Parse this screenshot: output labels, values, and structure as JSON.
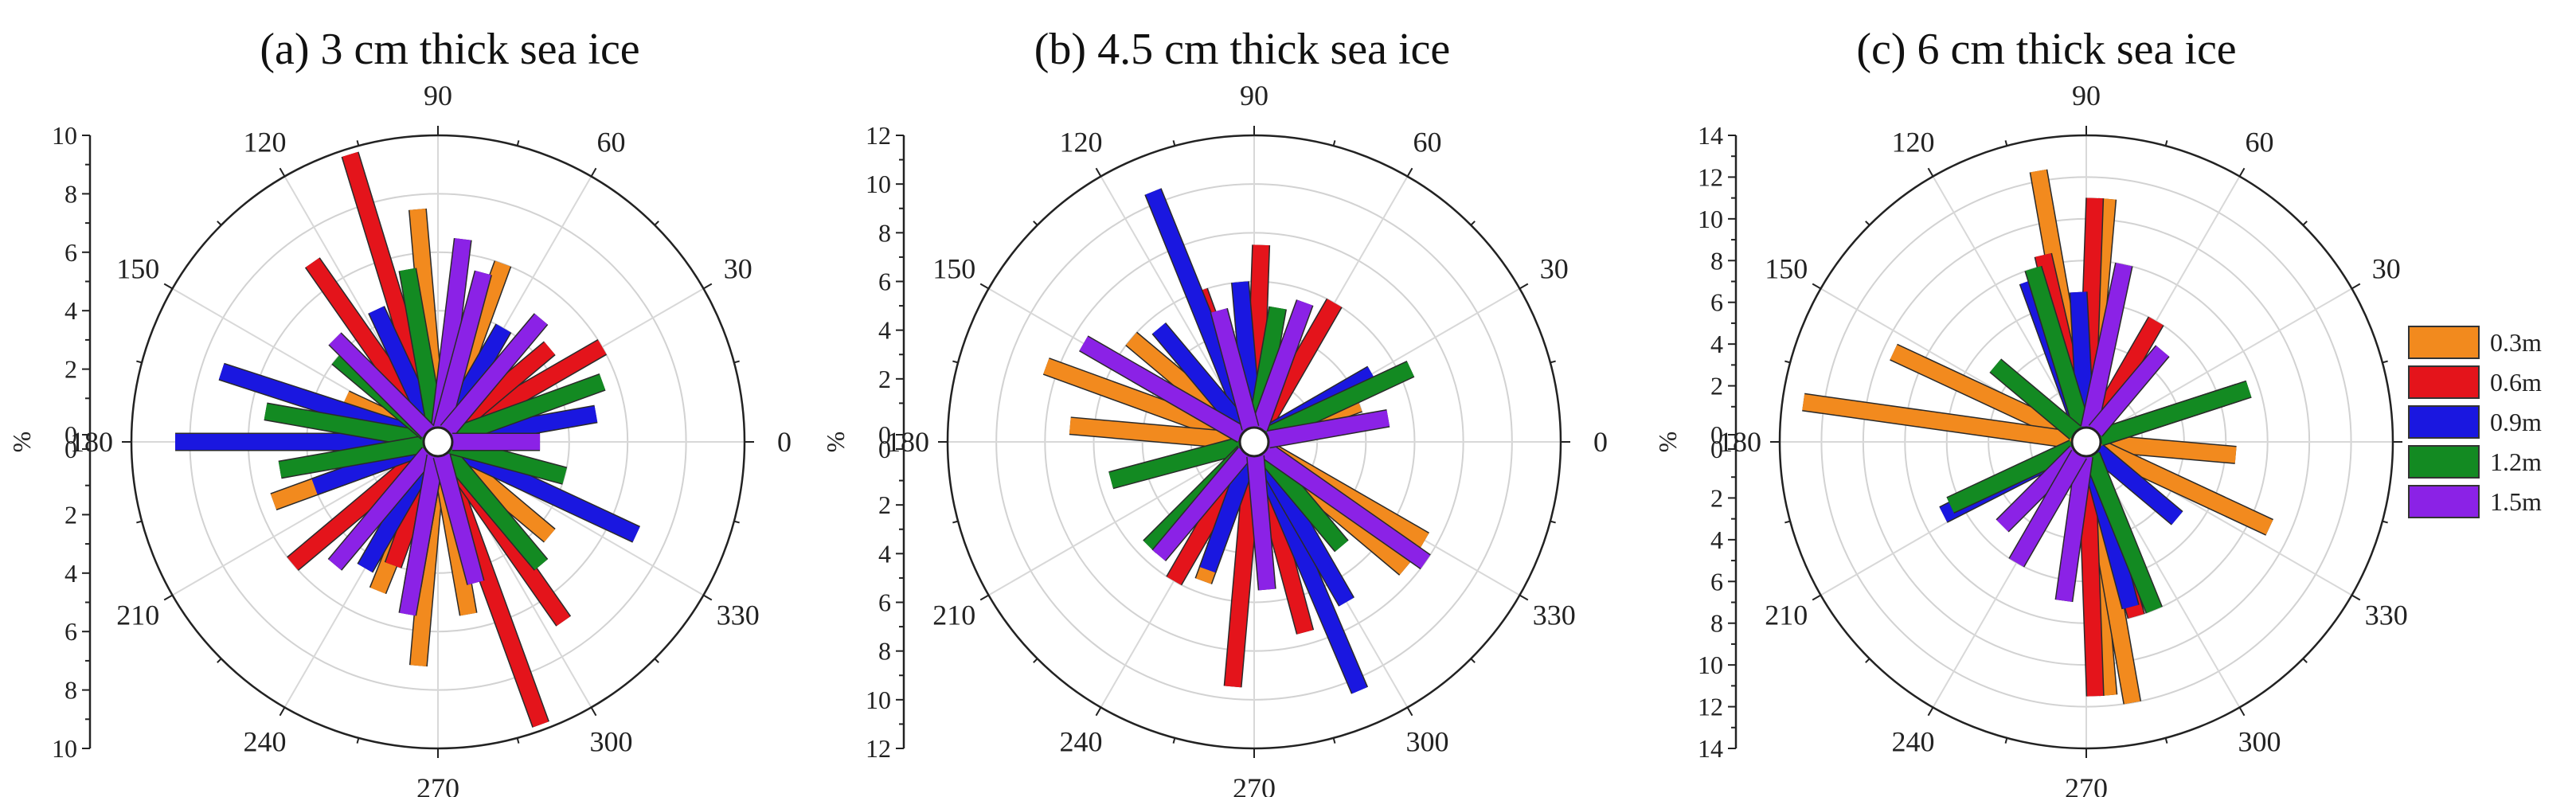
{
  "chart_data": [
    {
      "type": "polar-bar",
      "title": "(a) 3 cm thick sea ice",
      "ylabel": "%",
      "rlim": [
        0,
        10
      ],
      "radial_ticks": [
        0,
        2,
        4,
        6,
        8,
        10
      ],
      "angle_ticks": [
        0,
        30,
        60,
        90,
        120,
        150,
        180,
        210,
        240,
        270,
        300,
        330
      ],
      "angle_unit": "deg",
      "grid": true,
      "series": [
        {
          "name": "0.3m",
          "color": "#f28a1e",
          "angles": [
            95,
            200,
            248,
            265,
            280,
            320,
            70,
            155
          ],
          "values": [
            7.5,
            5.5,
            5.0,
            7.2,
            5.5,
            4.5,
            6.0,
            3.0
          ]
        },
        {
          "name": "0.6m",
          "color": "#e4141b",
          "angles": [
            107,
            125,
            290,
            305,
            30,
            220,
            40,
            250
          ],
          "values": [
            9.8,
            7.0,
            9.8,
            7.0,
            6.0,
            6.0,
            4.5,
            4.0
          ]
        },
        {
          "name": "0.9m",
          "color": "#1a17e0",
          "angles": [
            162,
            180,
            335,
            115,
            60,
            240,
            10,
            200
          ],
          "values": [
            7.3,
            8.5,
            7.0,
            4.5,
            4.0,
            4.5,
            5.0,
            4.0
          ]
        },
        {
          "name": "1.2m",
          "color": "#138a22",
          "angles": [
            170,
            190,
            20,
            100,
            310,
            260,
            140,
            345
          ],
          "values": [
            5.5,
            5.0,
            5.5,
            5.5,
            5.0,
            4.5,
            4.0,
            4.0
          ]
        },
        {
          "name": "1.5m",
          "color": "#8b22e6",
          "angles": [
            83,
            75,
            50,
            230,
            260,
            135,
            0,
            285
          ],
          "values": [
            6.5,
            5.5,
            5.0,
            5.0,
            5.5,
            4.5,
            3.0,
            4.5
          ]
        }
      ]
    },
    {
      "type": "polar-bar",
      "title": "(b) 4.5 cm thick sea ice",
      "ylabel": "%",
      "rlim": [
        0,
        12
      ],
      "radial_ticks": [
        0,
        2,
        4,
        6,
        8,
        10,
        12
      ],
      "angle_ticks": [
        0,
        30,
        60,
        90,
        120,
        150,
        180,
        210,
        240,
        270,
        300,
        330
      ],
      "angle_unit": "deg",
      "grid": true,
      "series": [
        {
          "name": "0.3m",
          "color": "#f28a1e",
          "angles": [
            160,
            175,
            320,
            330,
            140,
            250,
            20
          ],
          "values": [
            8.5,
            7.0,
            7.5,
            7.5,
            6.0,
            5.5,
            4.0
          ]
        },
        {
          "name": "0.6m",
          "color": "#e4141b",
          "angles": [
            88,
            265,
            285,
            110,
            240,
            60
          ],
          "values": [
            7.5,
            9.5,
            7.5,
            6.0,
            6.0,
            6.0
          ]
        },
        {
          "name": "0.9m",
          "color": "#1a17e0",
          "angles": [
            112,
            293,
            300,
            95,
            130,
            250,
            30
          ],
          "values": [
            10.5,
            10.5,
            7.0,
            6.0,
            5.5,
            5.0,
            5.0
          ]
        },
        {
          "name": "1.2m",
          "color": "#138a22",
          "angles": [
            25,
            195,
            225,
            80,
            150,
            310
          ],
          "values": [
            6.5,
            5.5,
            5.5,
            5.0,
            5.0,
            5.0
          ]
        },
        {
          "name": "1.5m",
          "color": "#8b22e6",
          "angles": [
            150,
            325,
            70,
            105,
            230,
            10,
            275
          ],
          "values": [
            7.5,
            8.0,
            5.5,
            5.0,
            5.5,
            5.0,
            5.5
          ]
        }
      ]
    },
    {
      "type": "polar-bar",
      "title": "(c) 6 cm thick sea ice",
      "ylabel": "%",
      "rlim": [
        0,
        14
      ],
      "radial_ticks": [
        0,
        2,
        4,
        6,
        8,
        10,
        12,
        14
      ],
      "angle_ticks": [
        0,
        30,
        60,
        90,
        120,
        150,
        180,
        210,
        240,
        270,
        300,
        330
      ],
      "angle_unit": "deg",
      "grid": true,
      "series": [
        {
          "name": "0.3m",
          "color": "#f28a1e",
          "angles": [
            100,
            85,
            155,
            172,
            275,
            280,
            355,
            335
          ],
          "values": [
            12.5,
            11.0,
            9.5,
            13.0,
            11.5,
            12.0,
            6.5,
            9.0
          ]
        },
        {
          "name": "0.6m",
          "color": "#e4141b",
          "angles": [
            88,
            272,
            103,
            286,
            60
          ],
          "values": [
            11.0,
            11.5,
            8.5,
            8.0,
            6.0
          ]
        },
        {
          "name": "0.9m",
          "color": "#1a17e0",
          "angles": [
            93,
            207,
            285,
            110,
            18,
            320
          ],
          "values": [
            6.5,
            7.0,
            7.5,
            7.5,
            7.0,
            5.0
          ]
        },
        {
          "name": "1.2m",
          "color": "#138a22",
          "angles": [
            18,
            205,
            292,
            107,
            140
          ],
          "values": [
            7.5,
            6.5,
            8.0,
            8.0,
            5.0
          ]
        },
        {
          "name": "1.5m",
          "color": "#8b22e6",
          "angles": [
            78,
            262,
            50,
            225,
            240
          ],
          "values": [
            8.0,
            7.0,
            5.0,
            5.0,
            6.0
          ]
        }
      ]
    }
  ],
  "legend": {
    "placement": "right",
    "entries": [
      {
        "label": "0.3m",
        "color": "#f28a1e"
      },
      {
        "label": "0.6m",
        "color": "#e4141b"
      },
      {
        "label": "0.9m",
        "color": "#1a17e0"
      },
      {
        "label": "1.2m",
        "color": "#138a22"
      },
      {
        "label": "1.5m",
        "color": "#8b22e6"
      }
    ]
  }
}
